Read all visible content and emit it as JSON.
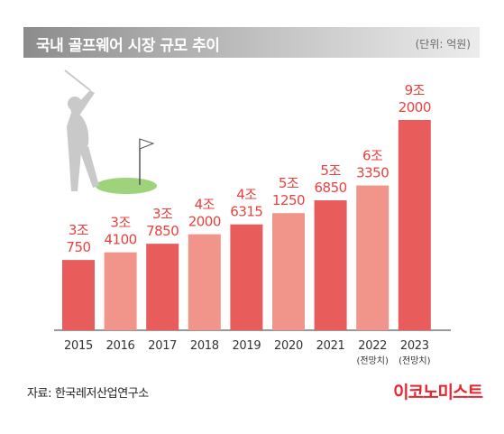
{
  "header": {
    "title": "국내 골프웨어 시장 규모 추이",
    "unit": "(단위: 억원)"
  },
  "footer": {
    "source": "자료: 한국레저산업연구소",
    "brand": "이코노미스트"
  },
  "colors": {
    "bar_dark": "#e85c5c",
    "bar_light": "#f1948a",
    "label": "#e8423f",
    "axis": "#333333"
  },
  "chart_data": {
    "type": "bar",
    "categories": [
      "2015",
      "2016",
      "2017",
      "2018",
      "2019",
      "2020",
      "2021",
      "2022",
      "2023"
    ],
    "category_notes": [
      "",
      "",
      "",
      "",
      "",
      "",
      "",
      "(전망치)",
      "(전망치)"
    ],
    "values": [
      30750,
      34100,
      37850,
      42000,
      46315,
      51250,
      56850,
      63350,
      92000
    ],
    "labels_top": [
      "3조",
      "3조",
      "3조",
      "4조",
      "4조",
      "5조",
      "5조",
      "6조",
      "9조"
    ],
    "labels_bottom": [
      "750",
      "4100",
      "7850",
      "2000",
      "6315",
      "1250",
      "6850",
      "3350",
      "2000"
    ],
    "bar_colors": [
      "#e85c5c",
      "#f1948a",
      "#e85c5c",
      "#f1948a",
      "#e85c5c",
      "#f1948a",
      "#e85c5c",
      "#f1948a",
      "#e85c5c"
    ],
    "ylim": [
      0,
      92000
    ],
    "grid": false
  }
}
